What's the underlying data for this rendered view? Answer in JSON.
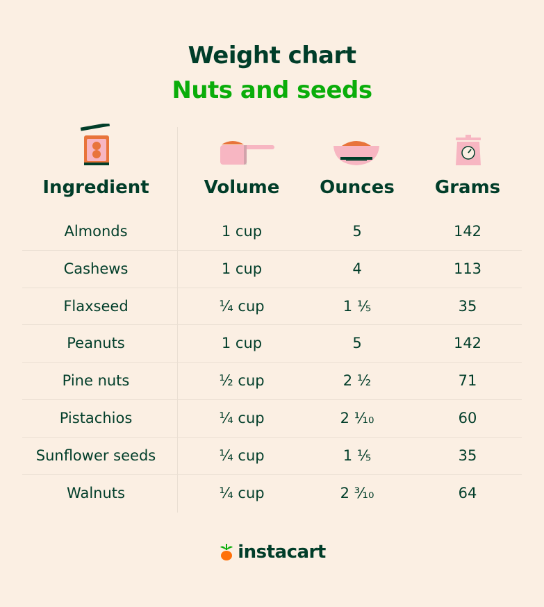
{
  "title": "Weight chart",
  "subtitle": "Nuts and seeds",
  "headers": {
    "ingredient": "Ingredient",
    "volume": "Volume",
    "ounces": "Ounces",
    "grams": "Grams"
  },
  "rows": [
    {
      "ingredient": "Almonds",
      "volume": "1 cup",
      "ounces": "5",
      "grams": "142"
    },
    {
      "ingredient": "Cashews",
      "volume": "1 cup",
      "ounces": "4",
      "grams": "113"
    },
    {
      "ingredient": "Flaxseed",
      "volume": "¼ cup",
      "ounces": "1 ⅕",
      "grams": "35"
    },
    {
      "ingredient": "Peanuts",
      "volume": "1 cup",
      "ounces": "5",
      "grams": "142"
    },
    {
      "ingredient": "Pine nuts",
      "volume": "½ cup",
      "ounces": "2 ½",
      "grams": "71"
    },
    {
      "ingredient": "Pistachios",
      "volume": "¼ cup",
      "ounces": "2 ⅒",
      "grams": "60"
    },
    {
      "ingredient": "Sunflower seeds",
      "volume": "¼ cup",
      "ounces": "1 ⅕",
      "grams": "35"
    },
    {
      "ingredient": "Walnuts",
      "volume": "¼ cup",
      "ounces": "2 ³⁄₁₀",
      "grams": "64"
    }
  ],
  "logo": {
    "text": "instacart",
    "icon": "carrot-icon"
  },
  "icons": {
    "ingredient": "peanut-jar-icon",
    "volume": "measuring-cup-icon",
    "ounces": "bowl-icon",
    "grams": "kitchen-scale-icon"
  },
  "colors": {
    "background": "#fbefe3",
    "dark_green": "#003d29",
    "bright_green": "#0aad0a",
    "orange": "#e8743b",
    "pink": "#f7b6c2"
  }
}
